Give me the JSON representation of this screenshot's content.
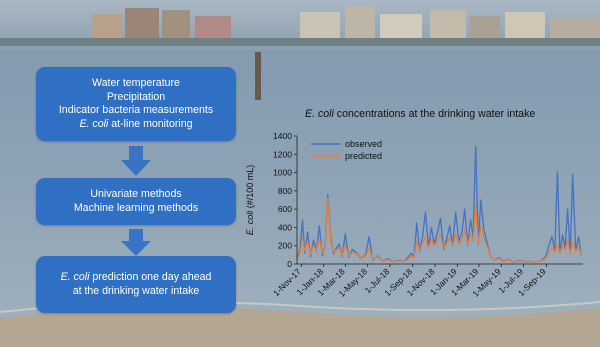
{
  "flow": {
    "step1": {
      "lines": [
        "Water temperature",
        "Precipitation",
        "Indicator bacteria measurements"
      ],
      "last_italic": "E. coli",
      "last_rest": " at-line monitoring"
    },
    "step2": {
      "lines": [
        "Univariate methods",
        "Machine learning methods"
      ]
    },
    "step3": {
      "line1_italic": "E. coli",
      "line1_rest": " prediction one day ahead",
      "line2": "at the drinking water intake"
    },
    "colors": {
      "box": "#2f6fc4",
      "arrow": "#3a72c6",
      "box_text": "#ffffff"
    }
  },
  "chart_title": {
    "italic": "E. coli",
    "rest": " concentrations at the drinking water intake"
  },
  "chart_data": {
    "type": "line",
    "title": "E. coli concentrations at the drinking water intake",
    "ylabel_italic": "E. coli",
    "ylabel_rest": " (#/100 mL)",
    "xlabel": "",
    "ylim": [
      0,
      1400
    ],
    "yticks": [
      0,
      200,
      400,
      600,
      800,
      1000,
      1200,
      1400
    ],
    "xlim": [
      "2017-10-20",
      "2019-12-10"
    ],
    "xtick_labels": [
      "1-Nov-17",
      "1-Jan-18",
      "1-Mar-18",
      "1-May-18",
      "1-Jul-18",
      "1-Sep-18",
      "1-Nov-18",
      "1-Jan-19",
      "1-Mar-19",
      "1-May-19",
      "1-Jul-19",
      "1-Sep-19"
    ],
    "xtick_dates": [
      "2017-11-01",
      "2018-01-01",
      "2018-03-01",
      "2018-05-01",
      "2018-07-01",
      "2018-09-01",
      "2018-11-01",
      "2019-01-01",
      "2019-03-01",
      "2019-05-01",
      "2019-07-01",
      "2019-09-01"
    ],
    "legend_position": "top-left",
    "series": [
      {
        "name": "observed",
        "color": "#4472c4",
        "x": [
          "2017-10-20",
          "2017-10-28",
          "2017-11-04",
          "2017-11-10",
          "2017-11-18",
          "2017-11-26",
          "2017-12-04",
          "2017-12-12",
          "2017-12-20",
          "2017-12-28",
          "2018-01-05",
          "2018-01-12",
          "2018-01-20",
          "2018-01-28",
          "2018-02-04",
          "2018-02-12",
          "2018-02-20",
          "2018-03-01",
          "2018-03-10",
          "2018-03-20",
          "2018-04-01",
          "2018-04-12",
          "2018-04-25",
          "2018-05-05",
          "2018-05-15",
          "2018-05-28",
          "2018-06-10",
          "2018-06-25",
          "2018-07-10",
          "2018-07-25",
          "2018-08-08",
          "2018-08-18",
          "2018-08-28",
          "2018-09-05",
          "2018-09-12",
          "2018-09-20",
          "2018-09-28",
          "2018-10-06",
          "2018-10-14",
          "2018-10-22",
          "2018-10-30",
          "2018-11-08",
          "2018-11-16",
          "2018-11-25",
          "2018-12-03",
          "2018-12-11",
          "2018-12-19",
          "2018-12-27",
          "2019-01-05",
          "2019-01-13",
          "2019-01-21",
          "2019-01-29",
          "2019-02-06",
          "2019-02-13",
          "2019-02-20",
          "2019-02-27",
          "2019-03-06",
          "2019-03-14",
          "2019-03-22",
          "2019-04-01",
          "2019-04-12",
          "2019-04-25",
          "2019-05-08",
          "2019-05-22",
          "2019-06-05",
          "2019-06-20",
          "2019-07-05",
          "2019-07-20",
          "2019-08-04",
          "2019-08-18",
          "2019-08-30",
          "2019-09-08",
          "2019-09-16",
          "2019-09-24",
          "2019-10-01",
          "2019-10-08",
          "2019-10-15",
          "2019-10-22",
          "2019-10-29",
          "2019-11-05",
          "2019-11-12",
          "2019-11-20",
          "2019-11-28",
          "2019-12-05"
        ],
        "y": [
          60,
          150,
          480,
          120,
          350,
          80,
          260,
          140,
          420,
          90,
          200,
          760,
          300,
          110,
          170,
          220,
          80,
          330,
          70,
          160,
          120,
          60,
          100,
          300,
          40,
          90,
          30,
          60,
          25,
          40,
          30,
          70,
          120,
          80,
          450,
          140,
          300,
          570,
          180,
          400,
          220,
          350,
          500,
          160,
          280,
          420,
          200,
          560,
          250,
          340,
          600,
          210,
          480,
          300,
          1290,
          220,
          700,
          380,
          250,
          90,
          40,
          70,
          30,
          50,
          20,
          40,
          25,
          30,
          20,
          40,
          80,
          200,
          300,
          150,
          1010,
          120,
          320,
          180,
          600,
          110,
          980,
          150,
          300,
          90
        ]
      },
      {
        "name": "predicted",
        "color": "#ed7d31",
        "x": [
          "2017-10-20",
          "2017-10-28",
          "2017-11-04",
          "2017-11-10",
          "2017-11-18",
          "2017-11-26",
          "2017-12-04",
          "2017-12-12",
          "2017-12-20",
          "2017-12-28",
          "2018-01-05",
          "2018-01-12",
          "2018-01-20",
          "2018-01-28",
          "2018-02-04",
          "2018-02-12",
          "2018-02-20",
          "2018-03-01",
          "2018-03-10",
          "2018-03-20",
          "2018-04-01",
          "2018-04-12",
          "2018-04-25",
          "2018-05-05",
          "2018-05-15",
          "2018-05-28",
          "2018-06-10",
          "2018-06-25",
          "2018-07-10",
          "2018-07-25",
          "2018-08-08",
          "2018-08-18",
          "2018-08-28",
          "2018-09-05",
          "2018-09-12",
          "2018-09-20",
          "2018-09-28",
          "2018-10-06",
          "2018-10-14",
          "2018-10-22",
          "2018-10-30",
          "2018-11-08",
          "2018-11-16",
          "2018-11-25",
          "2018-12-03",
          "2018-12-11",
          "2018-12-19",
          "2018-12-27",
          "2019-01-05",
          "2019-01-13",
          "2019-01-21",
          "2019-01-29",
          "2019-02-06",
          "2019-02-13",
          "2019-02-20",
          "2019-02-27",
          "2019-03-06",
          "2019-03-14",
          "2019-03-22",
          "2019-04-01",
          "2019-04-12",
          "2019-04-25",
          "2019-05-08",
          "2019-05-22",
          "2019-06-05",
          "2019-06-20",
          "2019-07-05",
          "2019-07-20",
          "2019-08-04",
          "2019-08-18",
          "2019-08-30",
          "2019-09-08",
          "2019-09-16",
          "2019-09-24",
          "2019-10-01",
          "2019-10-08",
          "2019-10-15",
          "2019-10-22",
          "2019-10-29",
          "2019-11-05",
          "2019-11-12",
          "2019-11-20",
          "2019-11-28",
          "2019-12-05"
        ],
        "y": [
          50,
          120,
          300,
          140,
          250,
          100,
          200,
          150,
          280,
          110,
          180,
          720,
          260,
          130,
          150,
          180,
          90,
          220,
          80,
          130,
          110,
          60,
          90,
          180,
          50,
          80,
          30,
          50,
          25,
          35,
          30,
          50,
          90,
          70,
          250,
          150,
          230,
          300,
          170,
          280,
          200,
          260,
          320,
          170,
          230,
          300,
          200,
          330,
          220,
          260,
          380,
          220,
          320,
          250,
          640,
          230,
          420,
          300,
          210,
          90,
          40,
          60,
          30,
          45,
          20,
          35,
          25,
          30,
          20,
          35,
          60,
          120,
          180,
          130,
          220,
          120,
          200,
          150,
          260,
          110,
          240,
          140,
          200,
          90
        ]
      }
    ]
  }
}
